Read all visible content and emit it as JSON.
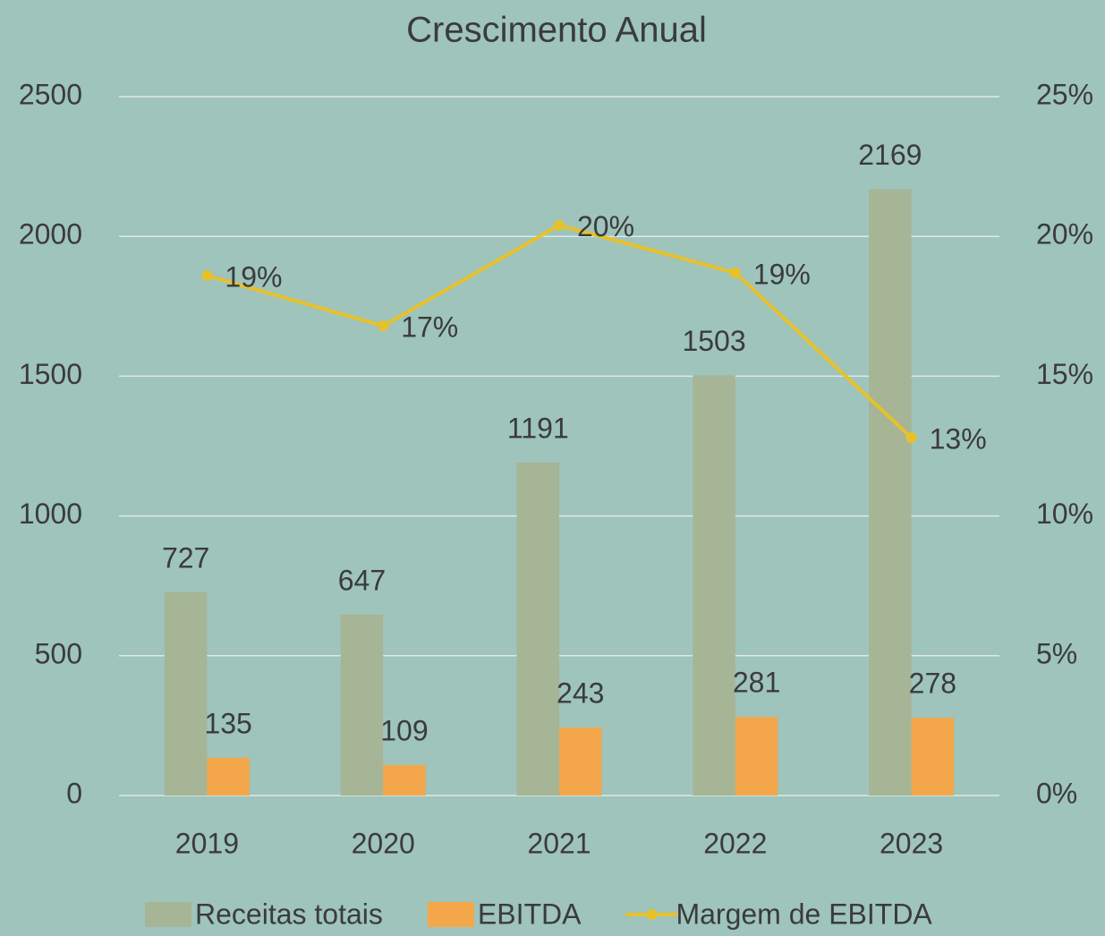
{
  "chart_data": {
    "type": "bar",
    "title": "Crescimento Anual",
    "categories": [
      "2019",
      "2020",
      "2021",
      "2022",
      "2023"
    ],
    "series": [
      {
        "name": "Receitas totais",
        "color": "#a6b596",
        "type": "bar",
        "values": [
          727,
          647,
          1191,
          1503,
          2169
        ]
      },
      {
        "name": "EBITDA",
        "color": "#f3a74a",
        "type": "bar",
        "values": [
          135,
          109,
          243,
          281,
          278
        ]
      },
      {
        "name": "Margem de EBITDA",
        "color": "#e8c12a",
        "type": "line",
        "axis": "y2",
        "values": [
          18.6,
          16.8,
          20.4,
          18.7,
          12.8
        ],
        "value_labels": [
          "19%",
          "17%",
          "20%",
          "19%",
          "13%"
        ]
      }
    ],
    "ylim": [
      0,
      2500
    ],
    "yticks": [
      0,
      500,
      1000,
      1500,
      2000,
      2500
    ],
    "y2lim": [
      0,
      25
    ],
    "y2ticks": [
      {
        "value": 0,
        "label": "0%"
      },
      {
        "value": 5,
        "label": "5%"
      },
      {
        "value": 10,
        "label": "10%"
      },
      {
        "value": 15,
        "label": "15%"
      },
      {
        "value": 20,
        "label": "20%"
      },
      {
        "value": 25,
        "label": "25%"
      }
    ],
    "grid": true,
    "legend": "bottom"
  }
}
